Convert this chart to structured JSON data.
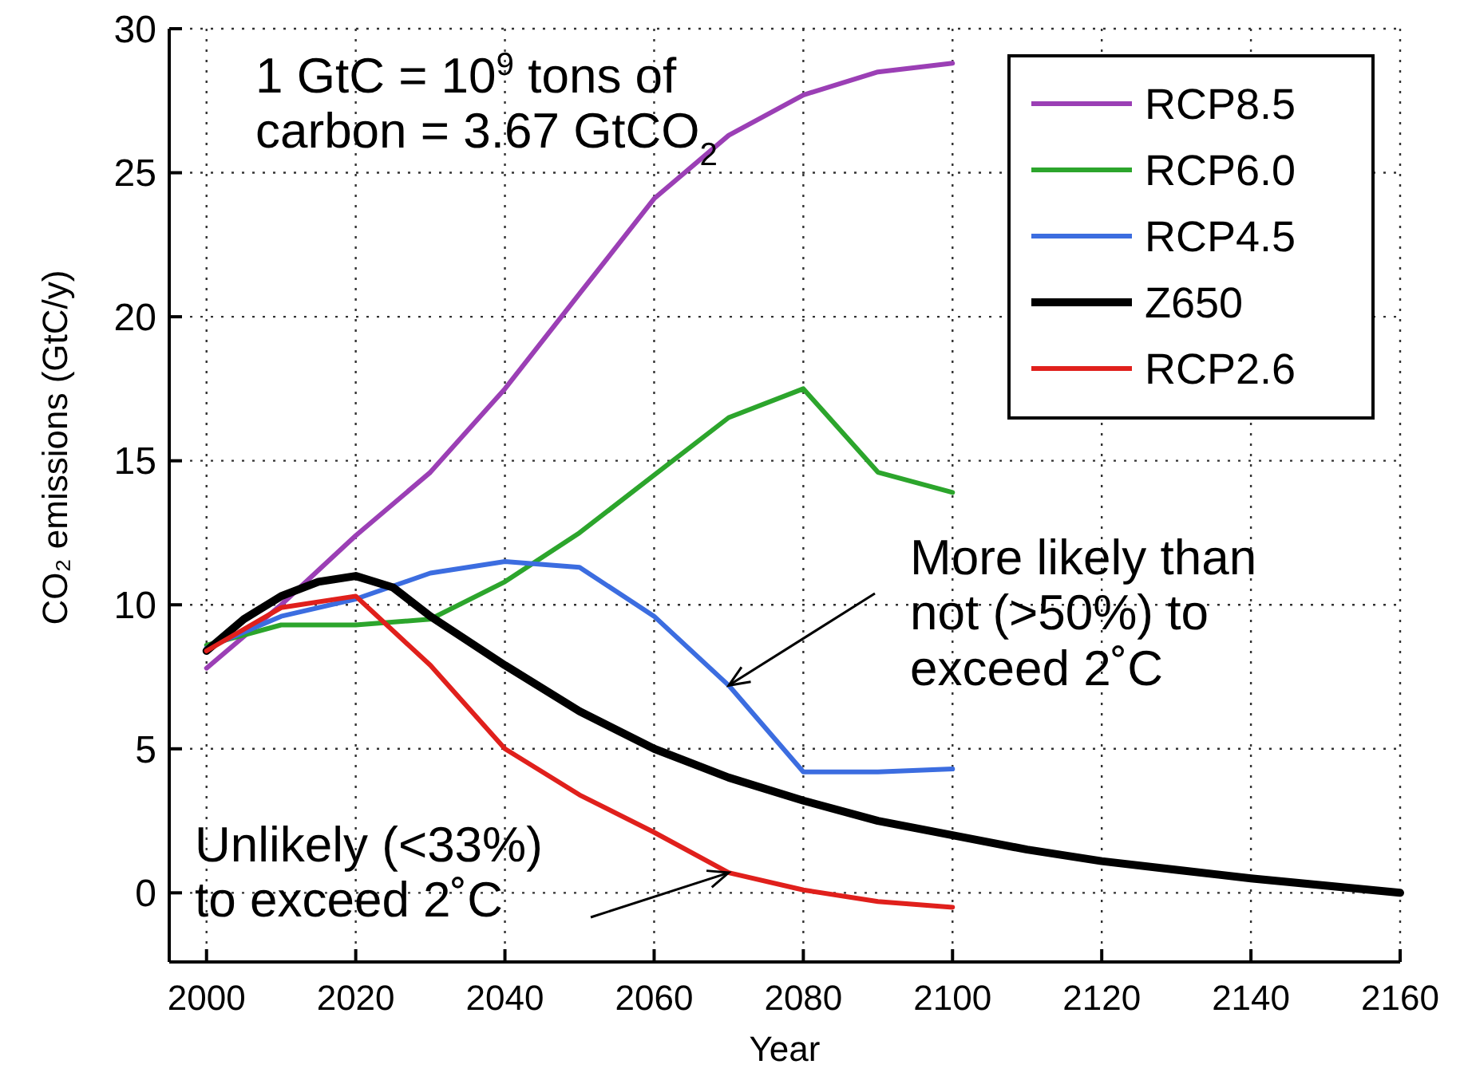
{
  "chart_data": {
    "type": "line",
    "xlabel": "Year",
    "ylabel": "CO₂ emissions (GtC/y)",
    "xlim": [
      1995,
      2160
    ],
    "xticks": [
      2000,
      2020,
      2040,
      2060,
      2080,
      2100,
      2120,
      2140,
      2160
    ],
    "ylim": [
      -2.4,
      30
    ],
    "yticks": [
      0,
      5,
      10,
      15,
      20,
      25,
      30
    ],
    "grid": true,
    "legend": "top right",
    "line_style": "solid",
    "marker": "none",
    "series": [
      {
        "name": "RCP8.5",
        "color": "#9b3fb5",
        "x": [
          2000,
          2010,
          2020,
          2030,
          2040,
          2050,
          2060,
          2070,
          2080,
          2090,
          2100
        ],
        "values": [
          7.8,
          10.0,
          12.4,
          14.6,
          17.5,
          20.8,
          24.1,
          26.3,
          27.7,
          28.5,
          28.8
        ]
      },
      {
        "name": "RCP6.0",
        "color": "#2ca52c",
        "x": [
          2000,
          2010,
          2020,
          2030,
          2040,
          2050,
          2060,
          2070,
          2080,
          2090,
          2100
        ],
        "values": [
          8.6,
          9.3,
          9.3,
          9.5,
          10.8,
          12.5,
          14.5,
          16.5,
          17.5,
          14.6,
          13.9
        ]
      },
      {
        "name": "RCP4.5",
        "color": "#3c6de0",
        "x": [
          2000,
          2010,
          2020,
          2030,
          2040,
          2050,
          2060,
          2070,
          2080,
          2090,
          2100
        ],
        "values": [
          8.5,
          9.6,
          10.2,
          11.1,
          11.5,
          11.3,
          9.6,
          7.2,
          4.2,
          4.2,
          4.3
        ]
      },
      {
        "name": "Z650",
        "color": "#000000",
        "x": [
          2000,
          2005,
          2010,
          2015,
          2020,
          2025,
          2030,
          2040,
          2050,
          2060,
          2070,
          2080,
          2090,
          2100,
          2110,
          2120,
          2130,
          2140,
          2150,
          2160
        ],
        "values": [
          8.4,
          9.5,
          10.3,
          10.8,
          11.0,
          10.6,
          9.6,
          7.9,
          6.3,
          5.0,
          4.0,
          3.2,
          2.5,
          2.0,
          1.5,
          1.1,
          0.8,
          0.5,
          0.25,
          0.0
        ]
      },
      {
        "name": "RCP2.6",
        "color": "#e0201c",
        "x": [
          2000,
          2010,
          2020,
          2030,
          2040,
          2050,
          2060,
          2070,
          2080,
          2090,
          2100
        ],
        "values": [
          8.4,
          9.9,
          10.3,
          7.9,
          5.0,
          3.4,
          2.1,
          0.7,
          0.1,
          -0.3,
          -0.5
        ]
      }
    ],
    "annotations": [
      "1 GtC = 10$^{9}$ tons of carbon = 3.67 GtCO$_{2}$",
      {
        "text": "More likely than not (>50%) to exceed 2˚C",
        "x": 2070,
        "y": 7.2
      },
      {
        "text": "Unlikely (<33%) to exceed 2˚C",
        "x": 2070,
        "y": 0.7
      }
    ]
  }
}
